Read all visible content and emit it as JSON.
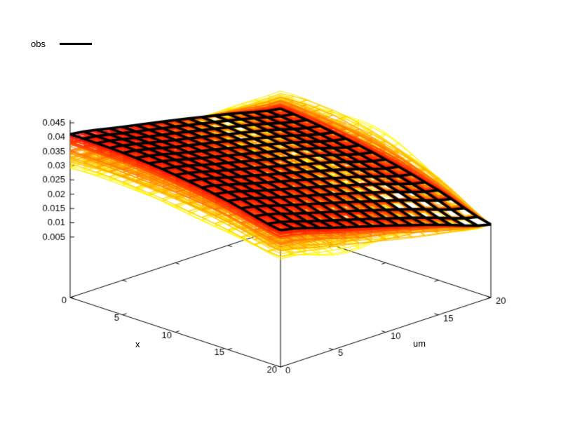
{
  "chart": {
    "background": "#ffffff",
    "legend": {
      "label": "obs",
      "line_color": "#000000"
    },
    "axes": {
      "x": {
        "label": "x",
        "ticks": [
          0,
          5,
          10,
          15,
          20
        ]
      },
      "um": {
        "label": "um",
        "ticks": [
          0,
          5,
          10,
          15,
          20
        ]
      },
      "z": {
        "ticks": [
          0.005,
          0.01,
          0.015,
          0.02,
          0.025,
          0.03,
          0.035,
          0.04,
          0.045
        ]
      }
    },
    "chart_data": {
      "type": "surface3d",
      "title": "",
      "xlabel": "x",
      "ylabel": "um",
      "x_grid": [
        0,
        5,
        10,
        15,
        20
      ],
      "um_grid": [
        0,
        5,
        10,
        15,
        20
      ],
      "x_range": [
        0,
        20
      ],
      "um_range": [
        0,
        20
      ],
      "z_axis_max": 0.046,
      "obs_surface": {
        "name": "obs",
        "color": "#000000",
        "line_width": 3.6,
        "z_grid": [
          [
            0.041,
            0.0406,
            0.0389,
            0.0359,
            0.0317
          ],
          [
            0.0375,
            0.0366,
            0.0345,
            0.0311,
            0.0265
          ],
          [
            0.0338,
            0.0325,
            0.0299,
            0.0261,
            0.0211
          ],
          [
            0.0298,
            0.0281,
            0.0251,
            0.0208,
            0.0154
          ],
          [
            0.0256,
            0.0234,
            0.02,
            0.0153,
            0.0094
          ]
        ]
      },
      "sample_surfaces": {
        "count": 30,
        "line_width": 1.1,
        "palette": {
          "far": "#ffff00",
          "mid": "#ff8c00",
          "near": "#ff0000"
        },
        "deviation_at_corners": {
          "x0_um0": -0.012,
          "x20_um0": -0.01,
          "x0_um20": 0.0055,
          "x20_um20": 0.0
        },
        "back_edge_hump": 0.016,
        "wiggle": {
          "base": 0.0011,
          "extra": 0.0055,
          "seed": 11
        }
      }
    }
  }
}
